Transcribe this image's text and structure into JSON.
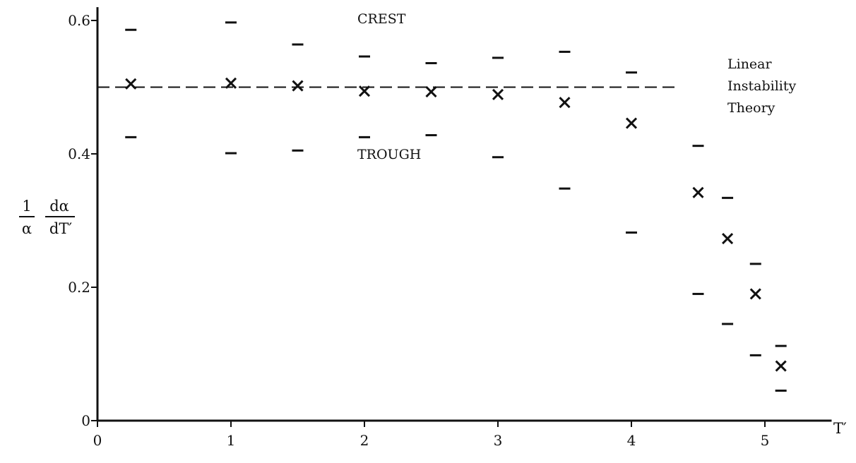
{
  "chart_data": {
    "type": "scatter",
    "x": [
      0.25,
      1.0,
      1.5,
      2.0,
      2.5,
      3.0,
      3.5,
      4.0,
      4.5,
      4.72,
      4.93,
      5.12
    ],
    "series": [
      {
        "values": [
          0.505,
          0.506,
          0.502,
          0.494,
          0.493,
          0.489,
          0.477,
          0.446,
          0.342,
          0.273,
          0.19,
          0.082
        ]
      }
    ],
    "upper": [
      0.586,
      0.597,
      0.564,
      0.546,
      0.536,
      0.544,
      0.553,
      0.522,
      0.412,
      0.334,
      0.235,
      0.112
    ],
    "lower": [
      0.425,
      0.401,
      0.405,
      0.425,
      0.428,
      0.395,
      0.348,
      0.282,
      0.19,
      0.145,
      0.098,
      0.045
    ],
    "reference_line": {
      "y": 0.5,
      "style": "dashed"
    },
    "xlim": [
      0,
      5.5
    ],
    "ylim": [
      0,
      0.62
    ],
    "xticks": [
      0,
      1,
      2,
      3,
      4,
      5
    ],
    "xtick_labels": [
      "0",
      "1",
      "2",
      "3",
      "4",
      "5"
    ],
    "yticks": [
      0,
      0.2,
      0.4,
      0.6
    ],
    "ytick_labels": [
      "0",
      "0.2",
      "0.4",
      "0.6"
    ],
    "xlabel": "T′",
    "ylabel": {
      "num1": "1",
      "den1": "α",
      "num2": "dα",
      "den2": "dT′"
    },
    "annotations": {
      "crest": "CREST",
      "trough": "TROUGH",
      "theory": [
        "Linear",
        "Instability",
        "Theory"
      ]
    },
    "grid": false
  }
}
